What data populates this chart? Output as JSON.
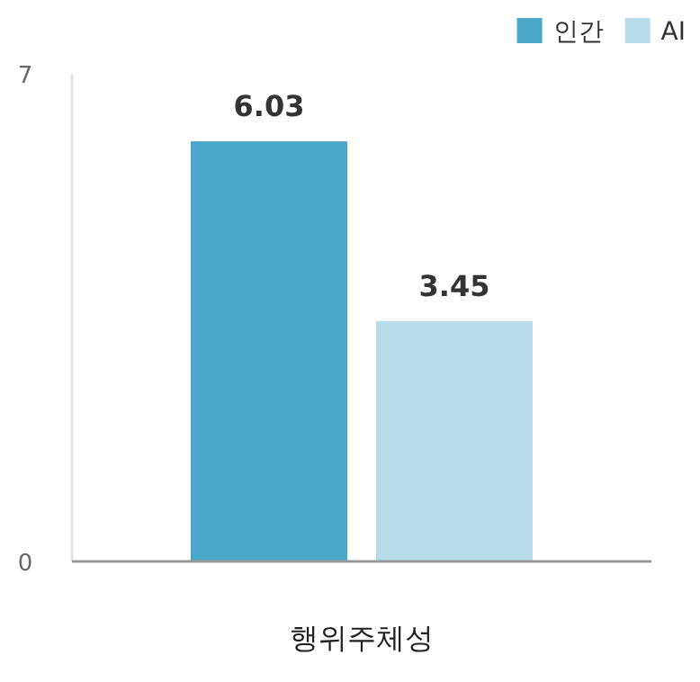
{
  "chart_data": {
    "type": "bar",
    "categories": [
      "행위주체성"
    ],
    "series": [
      {
        "name": "인간",
        "color": "#4ba7ca",
        "values": [
          6.03
        ]
      },
      {
        "name": "AI",
        "color": "#b9dde8",
        "values": [
          3.45
        ]
      }
    ],
    "ylim": [
      0,
      7
    ],
    "yticks": [
      0,
      7
    ],
    "legend": "top right",
    "data_labels": true
  }
}
